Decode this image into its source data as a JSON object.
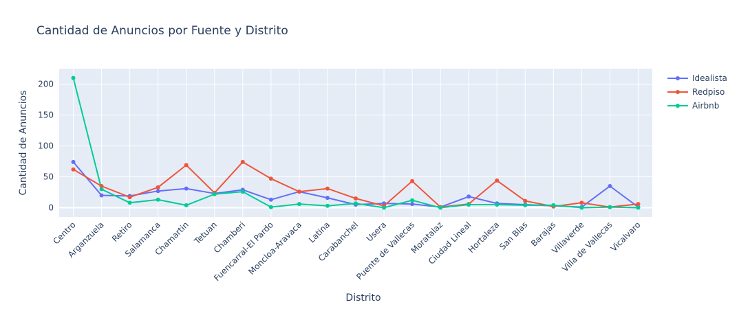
{
  "chart_data": {
    "type": "line",
    "title": "Cantidad de Anuncios por Fuente y Distrito",
    "xlabel": "Distrito",
    "ylabel": "Cantidad de Anuncios",
    "ylim": [
      -15,
      225
    ],
    "yticks": [
      0,
      50,
      100,
      150,
      200
    ],
    "grid": true,
    "legend_position": "top-right",
    "categories": [
      "Centro",
      "Arganzuela",
      "Retiro",
      "Salamanca",
      "Chamartin",
      "Tetuan",
      "Chamberi",
      "Fuencarral-El Pardo",
      "Moncloa-Aravaca",
      "Latina",
      "Carabanchel",
      "Usera",
      "Puente de Vallecas",
      "Moratalaz",
      "Ciudad Lineal",
      "Hortaleza",
      "San Blas",
      "Barajas",
      "Villaverde",
      "Villa de Vallecas",
      "Vicalvaro"
    ],
    "series": [
      {
        "name": "Idealista",
        "color": "#636efa",
        "values": [
          74,
          20,
          19,
          27,
          31,
          23,
          29,
          13,
          26,
          16,
          5,
          7,
          6,
          1,
          18,
          7,
          5,
          3,
          1,
          35,
          1
        ]
      },
      {
        "name": "Redpiso",
        "color": "#ef553b",
        "values": [
          62,
          35,
          17,
          33,
          69,
          24,
          74,
          47,
          26,
          31,
          15,
          3,
          43,
          1,
          6,
          44,
          11,
          2,
          8,
          1,
          6
        ]
      },
      {
        "name": "Airbnb",
        "color": "#00cc96",
        "values": [
          210,
          30,
          8,
          13,
          4,
          22,
          26,
          1,
          6,
          3,
          7,
          0,
          12,
          0,
          5,
          5,
          4,
          4,
          0,
          1,
          0
        ]
      }
    ]
  }
}
